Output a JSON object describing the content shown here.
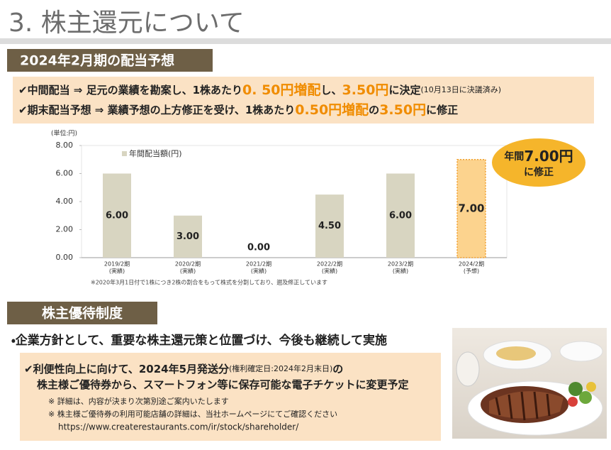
{
  "header": {
    "title": "3. 株主還元について"
  },
  "dividend_section": {
    "heading": "2024年2月期の配当予想",
    "line1": [
      "✔中間配当 ⇒ 足元の業績を勘案し、1株あたり",
      "0. 50円増配",
      "し、",
      "3.50円",
      "に決定",
      "(10月13日に決議済み)"
    ],
    "line2": [
      "✔期末配当予想 ⇒ 業績予想の上方修正を受け、1株あたり",
      "0.50円増配",
      "の",
      "3.50円",
      "に修正"
    ],
    "callout": [
      "年間",
      "7.00円",
      "に修正"
    ]
  },
  "chart_data": {
    "type": "bar",
    "unit_label": "(単位:円)",
    "categories": [
      "2019/2期",
      "2020/2期",
      "2021/2期",
      "2022/2期",
      "2023/2期",
      "2024/2期"
    ],
    "category_notes": [
      "(実績)",
      "(実績)",
      "(実績)",
      "(実績)",
      "(実績)",
      "(予想)"
    ],
    "series": [
      {
        "name": "年間配当額(円)",
        "color": "#d8d5c1",
        "values": [
          6,
          3,
          0,
          4.5,
          6,
          7
        ],
        "value_labels": [
          "6.00",
          "3.00",
          "0.00",
          "4.50",
          "6.00",
          "7.00"
        ]
      }
    ],
    "bar_colors": [
      "#d8d5c1",
      "#d8d5c1",
      "#d8d5c1",
      "#d8d5c1",
      "#d8d5c1",
      "#fcd38e"
    ],
    "bar_dashed": [
      false,
      false,
      false,
      false,
      false,
      true
    ],
    "ylim": [
      0,
      8
    ],
    "yticks": [
      {
        "value": 0,
        "label": "0.00"
      },
      {
        "value": 2,
        "label": "2.00"
      },
      {
        "value": 4,
        "label": "4.00"
      },
      {
        "value": 6,
        "label": "6.00"
      },
      {
        "value": 8,
        "label": "8.00"
      }
    ],
    "grid": false,
    "footnote": "※2020年3月1日付で1株につき2株の割合をもって株式を分割しており、遡及修正しています"
  },
  "benefit_section": {
    "heading": "株主優待制度",
    "bullet": "・企業方針として、重要な株主還元策と位置づけ、今後も継続して実施",
    "lines": [
      [
        "✔利便性向上に向けて、2024年5月発送分",
        "(権利確定日:2024年2月末日)",
        "の"
      ],
      [
        "株主様ご優待券から、スマートフォン等に保存可能な電子チケットに変更予定"
      ]
    ],
    "notes": [
      "※ 詳細は、内容が決まり次第別途ご案内いたします",
      "※ 株主様ご優待券の利用可能店舗の詳細は、当社ホームページにてご確認ください",
      "https://www.createrestaurants.com/ir/stock/shareholder/"
    ]
  }
}
